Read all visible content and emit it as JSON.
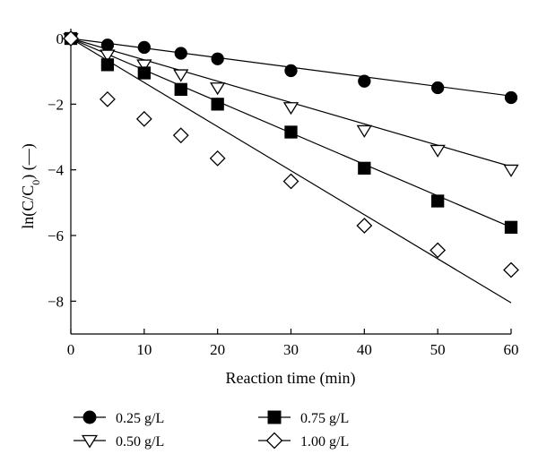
{
  "chart_data": {
    "type": "scatter",
    "xlabel": "Reaction time (min)",
    "ylabel": {
      "main": "ln(C/C",
      "sub": "0",
      "tail": ") (—)"
    },
    "xlim": [
      0,
      60
    ],
    "ylim": [
      -9,
      0.3
    ],
    "xticks": [
      "0",
      "10",
      "20",
      "30",
      "40",
      "50",
      "60"
    ],
    "yticks": [
      "0",
      "−2",
      "−4",
      "−6",
      "−8"
    ],
    "legend_position": "bottom",
    "series": [
      {
        "name": "0.25 g/L",
        "marker": "circle",
        "fill": "#000000",
        "x": [
          0,
          5,
          10,
          15,
          20,
          30,
          40,
          50,
          60
        ],
        "y": [
          0,
          -0.2,
          -0.27,
          -0.45,
          -0.62,
          -0.98,
          -1.3,
          -1.5,
          -1.8
        ],
        "fit": [
          [
            0,
            0
          ],
          [
            60,
            -1.75
          ]
        ]
      },
      {
        "name": "0.50 g/L",
        "marker": "triangle-down",
        "fill": "#ffffff",
        "x": [
          0,
          5,
          10,
          15,
          20,
          30,
          40,
          50,
          60
        ],
        "y": [
          0,
          -0.5,
          -0.8,
          -1.1,
          -1.5,
          -2.1,
          -2.8,
          -3.4,
          -4.0
        ],
        "fit": [
          [
            0,
            0
          ],
          [
            60,
            -3.9
          ]
        ]
      },
      {
        "name": "0.75 g/L",
        "marker": "square",
        "fill": "#000000",
        "x": [
          0,
          5,
          10,
          15,
          20,
          30,
          40,
          50,
          60
        ],
        "y": [
          0,
          -0.8,
          -1.05,
          -1.55,
          -2.0,
          -2.85,
          -3.95,
          -4.95,
          -5.75
        ],
        "fit": [
          [
            0,
            0
          ],
          [
            60,
            -5.75
          ]
        ]
      },
      {
        "name": "1.00 g/L",
        "marker": "diamond",
        "fill": "#ffffff",
        "x": [
          0,
          5,
          10,
          15,
          20,
          30,
          40,
          50,
          60
        ],
        "y": [
          0,
          -1.85,
          -2.45,
          -2.95,
          -3.65,
          -4.35,
          -5.7,
          -6.45,
          -7.05
        ],
        "fit": [
          [
            0,
            0
          ],
          [
            60,
            -8.05
          ]
        ]
      }
    ]
  }
}
